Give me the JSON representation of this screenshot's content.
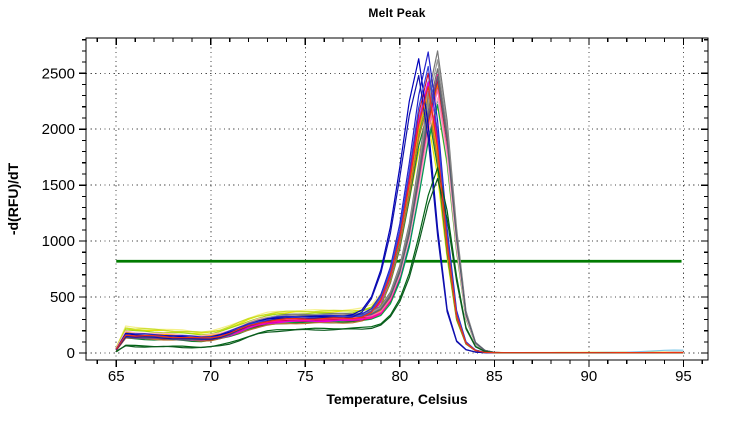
{
  "title": "Melt Peak",
  "colors": {
    "background": "#FFFFFF",
    "axis": "#000000",
    "grid_dots": "#4A4A4A",
    "threshold": "#007B00"
  },
  "chart_data": {
    "type": "line",
    "title": "Melt Peak",
    "xlabel": "Temperature, Celsius",
    "ylabel": "-d(RFU)/dT",
    "xlim": [
      63.4,
      96.3
    ],
    "ylim": [
      -62,
      2815
    ],
    "x_major_ticks": [
      65,
      70,
      75,
      80,
      85,
      90,
      95
    ],
    "x_minor_start": 64,
    "x_minor_end": 96,
    "x_minor_step": 1,
    "y_major_ticks": [
      0,
      500,
      1000,
      1500,
      2000,
      2500
    ],
    "y_minor_start": 100,
    "y_minor_end": 2800,
    "y_minor_step": 100,
    "grid": "dotted-at-major-ticks",
    "legend": "none",
    "threshold_line": {
      "y": 820,
      "x_start": 65,
      "x_end": 94.9,
      "color": "#007B00",
      "width": 2.8
    },
    "sample_step_c": 0.5,
    "baseline_jitter": 5,
    "shape_early": [
      [
        65,
        0.22
      ],
      [
        65.5,
        1.06
      ],
      [
        66,
        1.0
      ],
      [
        66.5,
        0.99
      ],
      [
        67,
        0.97
      ],
      [
        67.5,
        0.95
      ],
      [
        68,
        0.92
      ],
      [
        68.5,
        0.9
      ],
      [
        69,
        0.87
      ],
      [
        69.5,
        0.85
      ],
      [
        70,
        0.87
      ],
      [
        70.5,
        0.91
      ],
      [
        71,
        0.95
      ],
      [
        71.5,
        0.98
      ],
      [
        72,
        1.0
      ],
      [
        75,
        1.0
      ],
      [
        79,
        1.0
      ],
      [
        79.5,
        0.99
      ],
      [
        80,
        0.95
      ],
      [
        80.5,
        0.88
      ],
      [
        81,
        0.78
      ],
      [
        81.5,
        0.6
      ],
      [
        82,
        0.4
      ],
      [
        82.5,
        0.22
      ],
      [
        83,
        0.1
      ],
      [
        83.5,
        0.05
      ],
      [
        84,
        0.03
      ],
      [
        84.5,
        0.022
      ],
      [
        85,
        0.02
      ],
      [
        86,
        0.02
      ],
      [
        90,
        0.022
      ],
      [
        95,
        0.028
      ]
    ],
    "shape_plateau": [
      [
        65,
        0
      ],
      [
        69.5,
        0
      ],
      [
        70,
        0.02
      ],
      [
        70.5,
        0.08
      ],
      [
        71,
        0.2
      ],
      [
        71.5,
        0.38
      ],
      [
        72,
        0.58
      ],
      [
        72.5,
        0.75
      ],
      [
        73,
        0.87
      ],
      [
        73.5,
        0.94
      ],
      [
        74,
        0.98
      ],
      [
        74.5,
        1.0
      ],
      [
        75,
        1.01
      ],
      [
        76,
        1.02
      ],
      [
        77,
        1.04
      ],
      [
        77.5,
        1.05
      ],
      [
        78,
        1.07
      ],
      [
        78.5,
        1.09
      ],
      [
        79,
        1.11
      ],
      [
        79.5,
        1.1
      ],
      [
        80,
        1.02
      ],
      [
        80.5,
        0.88
      ],
      [
        81,
        0.66
      ],
      [
        81.5,
        0.44
      ],
      [
        82,
        0.26
      ],
      [
        82.5,
        0.13
      ],
      [
        83,
        0.06
      ],
      [
        83.5,
        0.025
      ],
      [
        84,
        0.01
      ],
      [
        84.5,
        0.004
      ],
      [
        85,
        0
      ],
      [
        95,
        0
      ]
    ],
    "shape_peak": [
      [
        -4,
        0
      ],
      [
        -3.5,
        0.004
      ],
      [
        -3,
        0.02
      ],
      [
        -2.5,
        0.07
      ],
      [
        -2,
        0.17
      ],
      [
        -1.5,
        0.33
      ],
      [
        -1,
        0.56
      ],
      [
        -0.5,
        0.82
      ],
      [
        0,
        1.0
      ],
      [
        0.5,
        0.78
      ],
      [
        1,
        0.42
      ],
      [
        1.5,
        0.14
      ],
      [
        2,
        0.035
      ],
      [
        2.5,
        0.008
      ],
      [
        3,
        0.001
      ],
      [
        3.5,
        0
      ],
      [
        14,
        0
      ]
    ],
    "shape_tail_bump": [
      [
        90,
        0
      ],
      [
        92,
        0.15
      ],
      [
        93,
        0.5
      ],
      [
        94,
        0.9
      ],
      [
        94.5,
        1.0
      ],
      [
        95,
        0.95
      ]
    ],
    "series": [
      {
        "color": "#F5F08A",
        "baseline": 225,
        "plateau": 380,
        "peak_rfu": 2150,
        "peak_temp": 81.5
      },
      {
        "color": "#E8E800",
        "baseline": 208,
        "plateau": 365,
        "peak_rfu": 2060,
        "peak_temp": 81.5
      },
      {
        "color": "#C8DC28",
        "baseline": 216,
        "plateau": 372,
        "peak_rfu": 2200,
        "peak_temp": 82.0
      },
      {
        "color": "#A0D818",
        "baseline": 196,
        "plateau": 352,
        "peak_rfu": 2230,
        "peak_temp": 81.5
      },
      {
        "color": "#64C832",
        "baseline": 150,
        "plateau": 298,
        "peak_rfu": 2250,
        "peak_temp": 81.5
      },
      {
        "color": "#1EB41E",
        "baseline": 140,
        "plateau": 288,
        "peak_rfu": 2300,
        "peak_temp": 81.5
      },
      {
        "color": "#00A844",
        "baseline": 132,
        "plateau": 278,
        "peak_rfu": 2220,
        "peak_temp": 82.0
      },
      {
        "color": "#168032",
        "baseline": 125,
        "plateau": 270,
        "peak_rfu": 2160,
        "peak_temp": 81.5
      },
      {
        "color": "#20B2AA",
        "baseline": 160,
        "plateau": 308,
        "peak_rfu": 2330,
        "peak_temp": 81.5
      },
      {
        "color": "#008080",
        "baseline": 150,
        "plateau": 294,
        "peak_rfu": 2270,
        "peak_temp": 82.0
      },
      {
        "color": "#7EC8E8",
        "baseline": 176,
        "plateau": 330,
        "peak_rfu": 2360,
        "peak_temp": 82.0,
        "tail_bump": 22
      },
      {
        "color": "#6488EE",
        "baseline": 168,
        "plateau": 324,
        "peak_rfu": 2430,
        "peak_temp": 81.5
      },
      {
        "color": "#9370DB",
        "baseline": 158,
        "plateau": 304,
        "peak_rfu": 2340,
        "peak_temp": 81.5
      },
      {
        "color": "#8A2BE2",
        "baseline": 148,
        "plateau": 296,
        "peak_rfu": 2390,
        "peak_temp": 82.0
      },
      {
        "color": "#FFA500",
        "baseline": 172,
        "plateau": 330,
        "peak_rfu": 2310,
        "peak_temp": 81.5
      },
      {
        "color": "#FF7700",
        "baseline": 162,
        "plateau": 316,
        "peak_rfu": 2400,
        "peak_temp": 82.0
      },
      {
        "color": "#B8732E",
        "baseline": 128,
        "plateau": 266,
        "peak_rfu": 2240,
        "peak_temp": 81.5
      },
      {
        "color": "#EE2222",
        "baseline": 150,
        "plateau": 298,
        "peak_rfu": 2410,
        "peak_temp": 81.5
      },
      {
        "color": "#CC1133",
        "baseline": 145,
        "plateau": 292,
        "peak_rfu": 2500,
        "peak_temp": 81.5
      },
      {
        "color": "#B01030",
        "baseline": 138,
        "plateau": 286,
        "peak_rfu": 2440,
        "peak_temp": 82.0
      },
      {
        "color": "#FF00AA",
        "baseline": 142,
        "plateau": 290,
        "peak_rfu": 2470,
        "peak_temp": 82.0
      },
      {
        "color": "#E000E0",
        "baseline": 136,
        "plateau": 283,
        "peak_rfu": 2420,
        "peak_temp": 81.5
      },
      {
        "color": "#FF1493",
        "baseline": 148,
        "plateau": 299,
        "peak_rfu": 2490,
        "peak_temp": 82.0
      },
      {
        "color": "#FF69B4",
        "baseline": 158,
        "plateau": 310,
        "peak_rfu": 2350,
        "peak_temp": 82.0
      },
      {
        "color": "#FFB0C0",
        "baseline": 182,
        "plateau": 340,
        "peak_rfu": 2280,
        "peak_temp": 82.0
      },
      {
        "color": "#787878",
        "baseline": 152,
        "plateau": 345,
        "peak_rfu": 2700,
        "peak_temp": 82.0
      },
      {
        "color": "#989898",
        "baseline": 162,
        "plateau": 338,
        "peak_rfu": 2620,
        "peak_temp": 82.0
      },
      {
        "color": "#6E6E6E",
        "baseline": 145,
        "plateau": 330,
        "peak_rfu": 2540,
        "peak_temp": 82.0
      },
      {
        "color": "#556070",
        "baseline": 135,
        "plateau": 320,
        "peak_rfu": 2470,
        "peak_temp": 82.0
      },
      {
        "color": "#2222CC",
        "baseline": 170,
        "plateau": 328,
        "peak_rfu": 2690,
        "peak_temp": 81.5
      },
      {
        "color": "#0000BB",
        "baseline": 160,
        "plateau": 322,
        "peak_rfu": 2630,
        "peak_temp": 81.0
      },
      {
        "color": "#3344DD",
        "baseline": 152,
        "plateau": 316,
        "peak_rfu": 2560,
        "peak_temp": 81.5
      },
      {
        "color": "#1111AA",
        "baseline": 143,
        "plateau": 310,
        "peak_rfu": 2480,
        "peak_temp": 81.0
      },
      {
        "color": "#006414",
        "baseline": 64,
        "plateau": 215,
        "peak_rfu": 1655,
        "peak_temp": 82.0
      },
      {
        "color": "#0B5B1E",
        "baseline": 58,
        "plateau": 205,
        "peak_rfu": 1560,
        "peak_temp": 82.0
      },
      {
        "color": "#EE3311",
        "baseline": 155,
        "plateau": 305,
        "peak_rfu": 2380,
        "peak_temp": 81.5
      }
    ]
  }
}
